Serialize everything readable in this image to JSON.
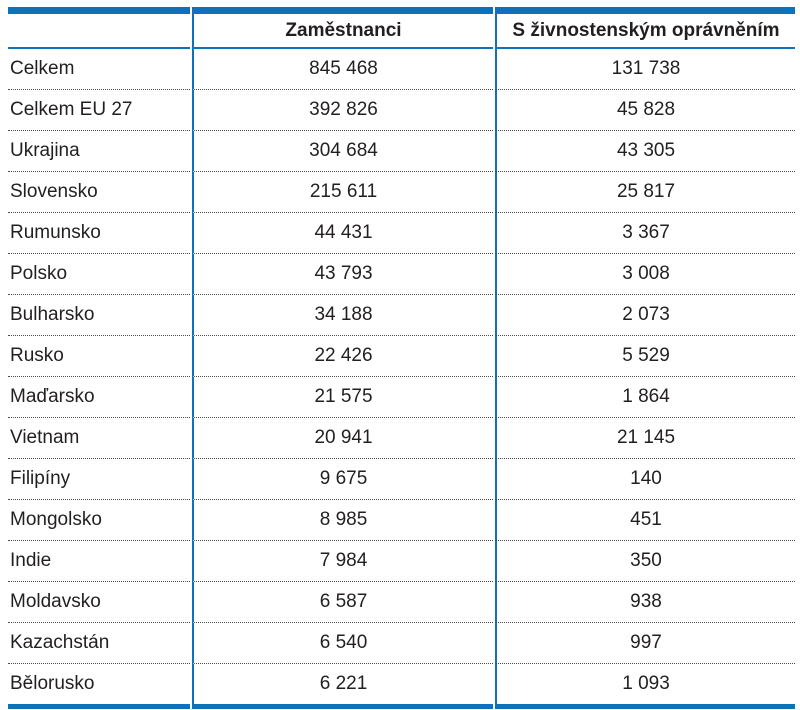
{
  "colors": {
    "accent_blue": "#0e72b8",
    "dotted_separator": "#4a4a4a",
    "text": "#231f20",
    "background": "#ffffff"
  },
  "chart_data": {
    "type": "table",
    "columns": [
      "",
      "Zaměstnanci",
      "S živnostenským oprávněním"
    ],
    "rows": [
      [
        "Celkem",
        "845 468",
        "131 738"
      ],
      [
        "Celkem EU 27",
        "392 826",
        "45 828"
      ],
      [
        "Ukrajina",
        "304 684",
        "43 305"
      ],
      [
        "Slovensko",
        "215 611",
        "25 817"
      ],
      [
        "Rumunsko",
        "44 431",
        "3 367"
      ],
      [
        "Polsko",
        "43 793",
        "3 008"
      ],
      [
        "Bulharsko",
        "34 188",
        "2 073"
      ],
      [
        "Rusko",
        "22 426",
        "5 529"
      ],
      [
        "Maďarsko",
        "21 575",
        "1 864"
      ],
      [
        "Vietnam",
        "20 941",
        "21 145"
      ],
      [
        "Filipíny",
        "9 675",
        "140"
      ],
      [
        "Mongolsko",
        "8 985",
        "451"
      ],
      [
        "Indie",
        "7 984",
        "350"
      ],
      [
        "Moldavsko",
        "6 587",
        "938"
      ],
      [
        "Kazachstán",
        "6 540",
        "997"
      ],
      [
        "Bělorusko",
        "6 221",
        "1 093"
      ]
    ]
  }
}
